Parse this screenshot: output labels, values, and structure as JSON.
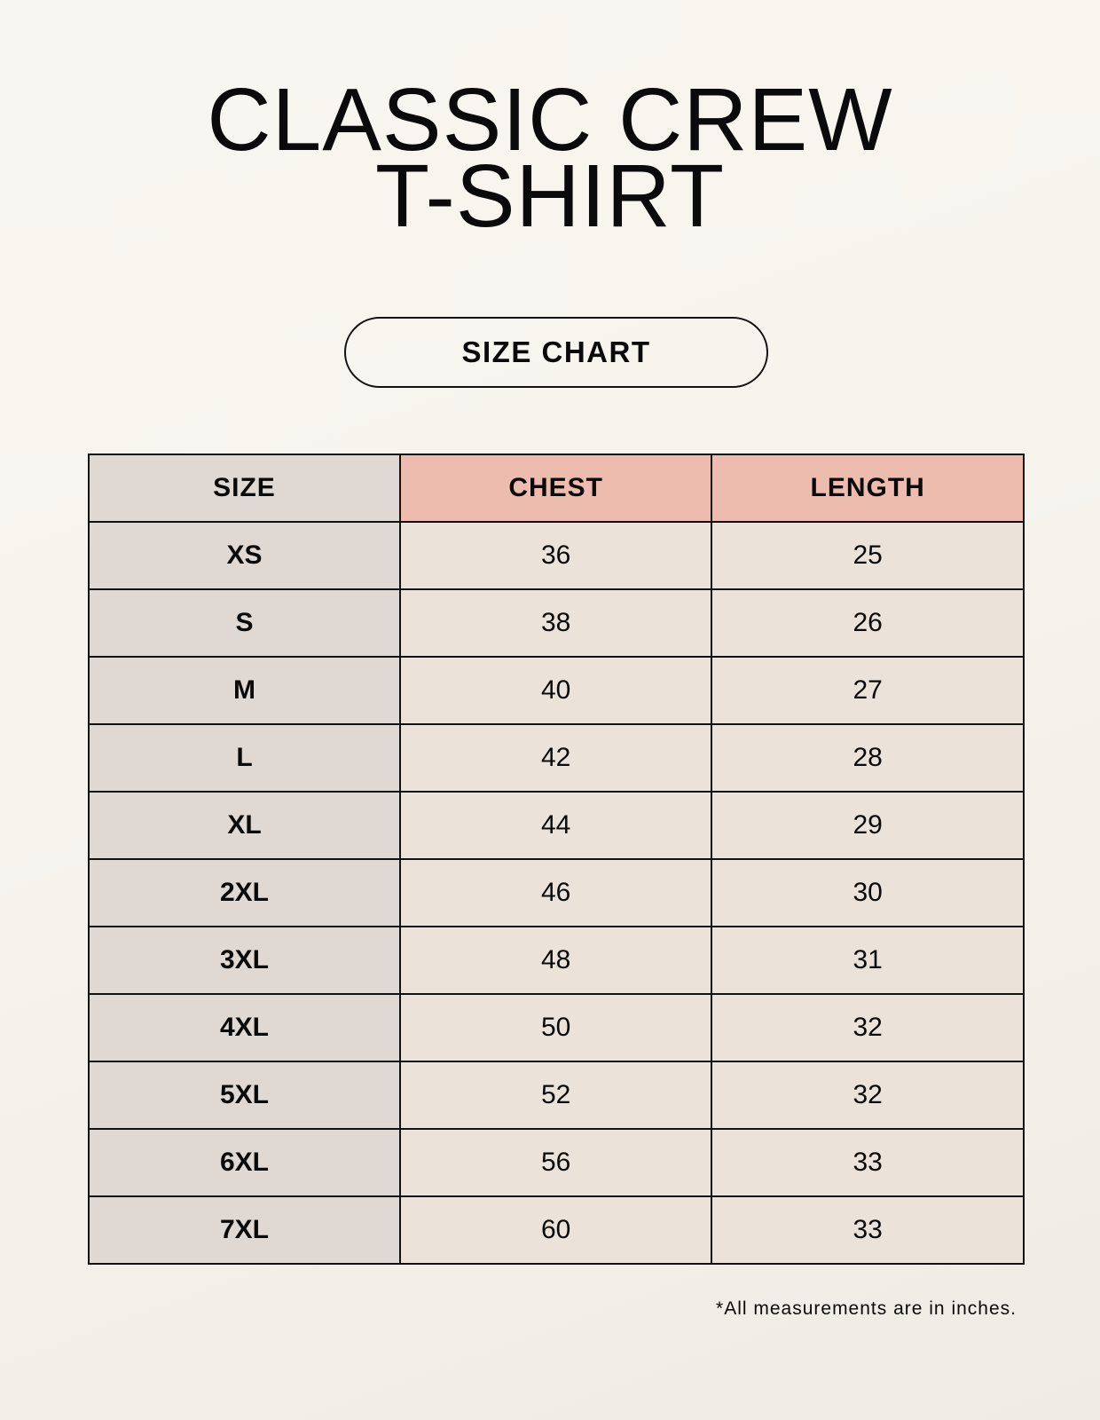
{
  "title": {
    "line1": "CLASSIC CREW",
    "line2": "T-SHIRT"
  },
  "badge": "SIZE CHART",
  "table": {
    "headers": [
      "SIZE",
      "CHEST",
      "LENGTH"
    ],
    "rows": [
      [
        "XS",
        "36",
        "25"
      ],
      [
        "S",
        "38",
        "26"
      ],
      [
        "M",
        "40",
        "27"
      ],
      [
        "L",
        "42",
        "28"
      ],
      [
        "XL",
        "44",
        "29"
      ],
      [
        "2XL",
        "46",
        "30"
      ],
      [
        "3XL",
        "48",
        "31"
      ],
      [
        "4XL",
        "50",
        "32"
      ],
      [
        "5XL",
        "52",
        "32"
      ],
      [
        "6XL",
        "56",
        "33"
      ],
      [
        "7XL",
        "60",
        "33"
      ]
    ]
  },
  "footnote": "*All measurements are in inches.",
  "colors": {
    "size_column": "#e0d9d3",
    "header_accent": "#eebcae",
    "value_cells": "#ebe3d9"
  }
}
